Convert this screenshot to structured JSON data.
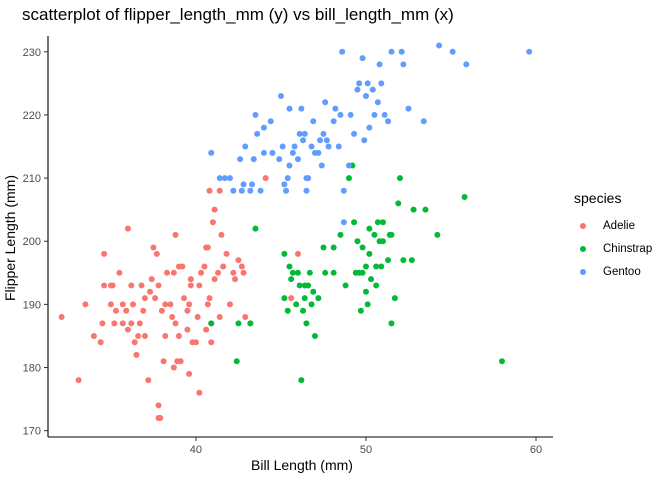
{
  "chart_data": {
    "type": "scatter",
    "title": "scatterplot of flipper_length_mm (y) vs bill_length_mm (x)",
    "xlabel": "Bill Length (mm)",
    "ylabel": "Flipper Length (mm)",
    "xlim": [
      31.3,
      61.0
    ],
    "ylim": [
      169.0,
      232.5
    ],
    "xticks": [
      40,
      50,
      60
    ],
    "yticks": [
      170,
      180,
      190,
      200,
      210,
      220,
      230
    ],
    "grid": false,
    "legend": {
      "title": "species",
      "position": "right"
    },
    "series": [
      {
        "name": "Adelie",
        "color": "#F8766D",
        "points": [
          [
            32.1,
            188
          ],
          [
            33.1,
            178
          ],
          [
            33.5,
            190
          ],
          [
            34.0,
            185
          ],
          [
            34.4,
            184
          ],
          [
            34.5,
            187
          ],
          [
            34.6,
            193
          ],
          [
            34.6,
            198
          ],
          [
            35.0,
            190
          ],
          [
            35.1,
            193
          ],
          [
            35.2,
            187
          ],
          [
            35.3,
            189
          ],
          [
            35.5,
            195
          ],
          [
            35.7,
            190
          ],
          [
            35.9,
            189
          ],
          [
            36.0,
            186
          ],
          [
            36.2,
            187
          ],
          [
            36.3,
            190
          ],
          [
            36.4,
            184
          ],
          [
            36.5,
            182
          ],
          [
            36.6,
            185
          ],
          [
            36.7,
            187
          ],
          [
            36.8,
            193
          ],
          [
            36.9,
            189
          ],
          [
            37.0,
            185
          ],
          [
            37.2,
            178
          ],
          [
            37.3,
            192
          ],
          [
            37.5,
            199
          ],
          [
            37.6,
            191
          ],
          [
            37.7,
            198
          ],
          [
            37.8,
            174
          ],
          [
            37.8,
            172
          ],
          [
            37.9,
            172
          ],
          [
            38.0,
            189
          ],
          [
            38.1,
            181
          ],
          [
            38.2,
            185
          ],
          [
            38.3,
            195
          ],
          [
            38.5,
            190
          ],
          [
            38.6,
            188
          ],
          [
            38.7,
            195
          ],
          [
            38.8,
            187
          ],
          [
            38.9,
            181
          ],
          [
            39.0,
            185
          ],
          [
            39.1,
            181
          ],
          [
            39.2,
            196
          ],
          [
            39.3,
            191
          ],
          [
            39.5,
            186
          ],
          [
            39.6,
            190
          ],
          [
            39.7,
            194
          ],
          [
            39.8,
            184
          ],
          [
            40.0,
            184
          ],
          [
            40.1,
            188
          ],
          [
            40.2,
            193
          ],
          [
            40.3,
            195
          ],
          [
            40.5,
            196
          ],
          [
            40.6,
            199
          ],
          [
            40.7,
            190
          ],
          [
            40.8,
            191
          ],
          [
            40.9,
            184
          ],
          [
            41.0,
            203
          ],
          [
            41.1,
            194
          ],
          [
            41.3,
            195
          ],
          [
            41.4,
            188
          ],
          [
            41.5,
            201
          ],
          [
            41.6,
            196
          ],
          [
            41.8,
            198
          ],
          [
            42.0,
            190
          ],
          [
            42.2,
            195
          ],
          [
            42.3,
            194
          ],
          [
            42.5,
            197
          ],
          [
            42.7,
            196
          ],
          [
            42.8,
            195
          ],
          [
            42.9,
            188
          ],
          [
            43.2,
            187
          ],
          [
            44.1,
            210
          ],
          [
            45.6,
            191
          ],
          [
            46.0,
            198
          ],
          [
            40.9,
            187
          ],
          [
            36.0,
            202
          ],
          [
            37.0,
            191
          ],
          [
            37.4,
            194
          ],
          [
            38.2,
            190
          ],
          [
            38.7,
            180
          ],
          [
            39.5,
            189
          ],
          [
            39.6,
            179
          ],
          [
            40.2,
            176
          ],
          [
            40.6,
            186
          ],
          [
            39.0,
            196
          ],
          [
            35.7,
            187
          ],
          [
            41.1,
            205
          ],
          [
            40.8,
            208
          ],
          [
            39.7,
            193
          ],
          [
            36.2,
            193
          ],
          [
            35.0,
            193
          ],
          [
            37.8,
            193
          ],
          [
            40.7,
            199
          ],
          [
            41.4,
            208
          ],
          [
            38.8,
            201
          ]
        ]
      },
      {
        "name": "Chinstrap",
        "color": "#00BA38",
        "points": [
          [
            40.9,
            187
          ],
          [
            42.4,
            181
          ],
          [
            42.5,
            187
          ],
          [
            43.2,
            187
          ],
          [
            43.5,
            202
          ],
          [
            45.2,
            198
          ],
          [
            45.4,
            189
          ],
          [
            45.5,
            196
          ],
          [
            45.6,
            194
          ],
          [
            45.7,
            195
          ],
          [
            45.9,
            190
          ],
          [
            46.0,
            195
          ],
          [
            46.1,
            193
          ],
          [
            46.2,
            178
          ],
          [
            46.4,
            191
          ],
          [
            46.5,
            187
          ],
          [
            46.6,
            193
          ],
          [
            46.7,
            195
          ],
          [
            46.8,
            190
          ],
          [
            46.9,
            192
          ],
          [
            47.0,
            185
          ],
          [
            47.5,
            199
          ],
          [
            47.6,
            195
          ],
          [
            48.1,
            199
          ],
          [
            48.5,
            201
          ],
          [
            48.8,
            193
          ],
          [
            49.0,
            210
          ],
          [
            49.2,
            212
          ],
          [
            49.3,
            203
          ],
          [
            49.5,
            200
          ],
          [
            49.6,
            195
          ],
          [
            49.7,
            189
          ],
          [
            49.8,
            195
          ],
          [
            50.0,
            196
          ],
          [
            50.1,
            190
          ],
          [
            50.2,
            198
          ],
          [
            50.3,
            194
          ],
          [
            50.5,
            201
          ],
          [
            50.6,
            193
          ],
          [
            50.7,
            203
          ],
          [
            50.8,
            200
          ],
          [
            50.9,
            196
          ],
          [
            51.0,
            203
          ],
          [
            51.3,
            197
          ],
          [
            51.4,
            201
          ],
          [
            51.5,
            187
          ],
          [
            51.7,
            191
          ],
          [
            51.9,
            206
          ],
          [
            52.0,
            210
          ],
          [
            52.7,
            197
          ],
          [
            52.8,
            205
          ],
          [
            53.5,
            205
          ],
          [
            54.2,
            201
          ],
          [
            55.8,
            207
          ],
          [
            58.0,
            181
          ],
          [
            45.2,
            191
          ],
          [
            46.3,
            189
          ],
          [
            47.2,
            191
          ],
          [
            49.8,
            199
          ],
          [
            50.0,
            192
          ],
          [
            51.0,
            200
          ],
          [
            50.6,
            196
          ],
          [
            50.2,
            202
          ],
          [
            52.2,
            197
          ],
          [
            48.1,
            195
          ],
          [
            46.4,
            193
          ],
          [
            49.4,
            195
          ],
          [
            51.5,
            201
          ]
        ]
      },
      {
        "name": "Gentoo",
        "color": "#619CFF",
        "points": [
          [
            40.9,
            214
          ],
          [
            41.4,
            210
          ],
          [
            41.7,
            210
          ],
          [
            42.0,
            210
          ],
          [
            42.2,
            208
          ],
          [
            42.6,
            213
          ],
          [
            42.7,
            208
          ],
          [
            42.8,
            209
          ],
          [
            42.9,
            215
          ],
          [
            43.2,
            208
          ],
          [
            43.3,
            209
          ],
          [
            43.4,
            213
          ],
          [
            43.5,
            220
          ],
          [
            43.6,
            217
          ],
          [
            43.8,
            208
          ],
          [
            44.0,
            214
          ],
          [
            44.4,
            219
          ],
          [
            44.5,
            214
          ],
          [
            44.9,
            213
          ],
          [
            45.1,
            215
          ],
          [
            45.2,
            209
          ],
          [
            45.3,
            208
          ],
          [
            45.4,
            210
          ],
          [
            45.5,
            212
          ],
          [
            45.7,
            214
          ],
          [
            45.8,
            215
          ],
          [
            46.1,
            217
          ],
          [
            46.2,
            221
          ],
          [
            46.3,
            216
          ],
          [
            46.4,
            217
          ],
          [
            46.5,
            210
          ],
          [
            46.6,
            210
          ],
          [
            46.8,
            215
          ],
          [
            46.9,
            219
          ],
          [
            47.2,
            214
          ],
          [
            47.3,
            216
          ],
          [
            47.4,
            212
          ],
          [
            47.5,
            217
          ],
          [
            47.6,
            222
          ],
          [
            47.7,
            216
          ],
          [
            47.8,
            215
          ],
          [
            48.1,
            219
          ],
          [
            48.2,
            221
          ],
          [
            48.4,
            215
          ],
          [
            48.5,
            220
          ],
          [
            48.6,
            230
          ],
          [
            48.7,
            208
          ],
          [
            49.0,
            212
          ],
          [
            49.1,
            220
          ],
          [
            49.3,
            217
          ],
          [
            49.5,
            224
          ],
          [
            49.6,
            225
          ],
          [
            49.8,
            229
          ],
          [
            50.0,
            223
          ],
          [
            50.1,
            225
          ],
          [
            50.2,
            218
          ],
          [
            50.4,
            224
          ],
          [
            50.5,
            220
          ],
          [
            50.7,
            222
          ],
          [
            50.8,
            228
          ],
          [
            51.1,
            220
          ],
          [
            51.3,
            219
          ],
          [
            51.5,
            230
          ],
          [
            52.1,
            230
          ],
          [
            52.2,
            228
          ],
          [
            52.5,
            221
          ],
          [
            53.4,
            219
          ],
          [
            54.3,
            231
          ],
          [
            55.1,
            230
          ],
          [
            55.9,
            228
          ],
          [
            59.6,
            230
          ],
          [
            45.0,
            223
          ],
          [
            44.0,
            218
          ],
          [
            45.5,
            221
          ],
          [
            46.0,
            213
          ],
          [
            47.0,
            214
          ],
          [
            48.7,
            203
          ],
          [
            49.9,
            216
          ],
          [
            50.9,
            225
          ],
          [
            46.5,
            208
          ]
        ]
      }
    ]
  }
}
